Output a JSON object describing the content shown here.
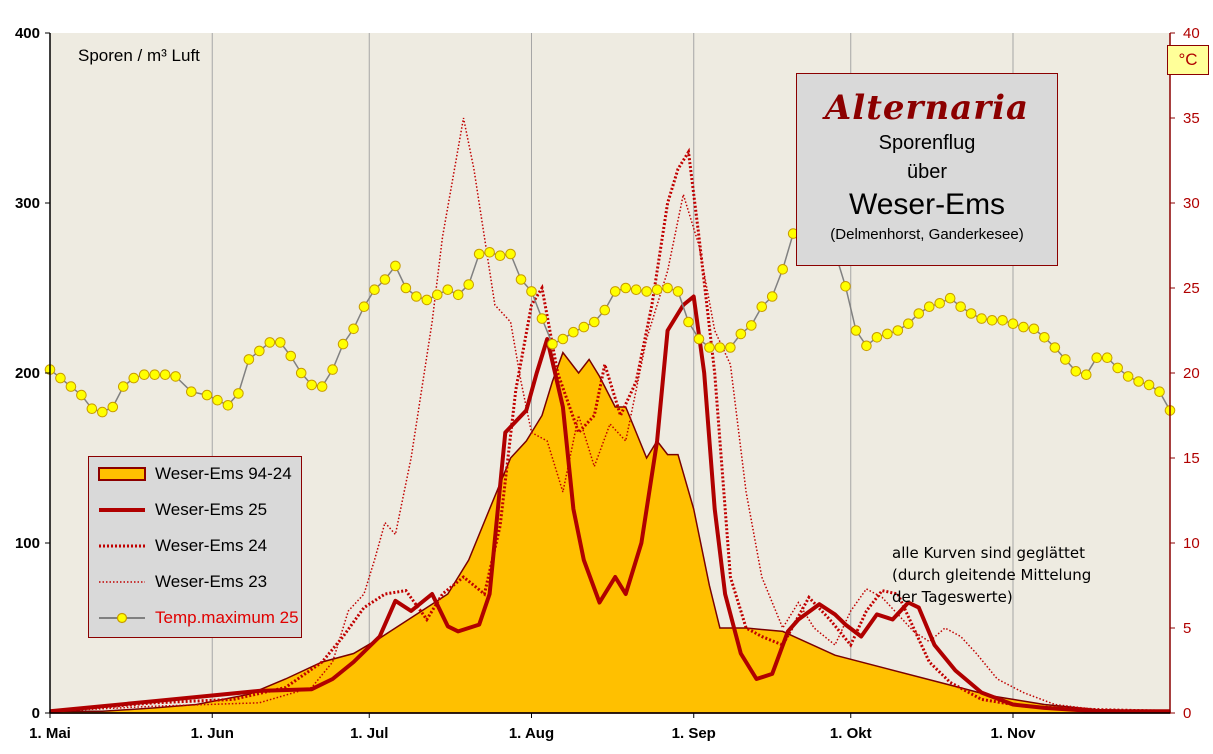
{
  "y_axis_label": "Sporen / m³ Luft",
  "y2_unit": "°C",
  "title": {
    "main": "Alternaria",
    "line2": "Sporenflug",
    "line3": "über",
    "region": "Weser-Ems",
    "places": "(Delmenhorst,  Ganderkesee)"
  },
  "note": [
    "alle Kurven   sind geglättet",
    "(durch  gleitende  Mittelung",
    "der Tageswerte)"
  ],
  "colors": {
    "plot_bg": "#eeebe1",
    "fill_9424": "#ffc000",
    "dark_red": "#b00000",
    "series_23_24": "#c00000",
    "temp_marker": "#ffff00",
    "temp_line": "#808080"
  },
  "chart_data": {
    "type": "line",
    "x_axis": {
      "unit": "day of year (1. Mai = day 0)",
      "range": [
        0,
        214
      ],
      "tick_labels": [
        "1. Mai",
        "1. Jun",
        "1. Jul",
        "1. Aug",
        "1. Sep",
        "1. Okt",
        "1. Nov"
      ],
      "tick_days": [
        0,
        31,
        61,
        92,
        123,
        153,
        184
      ]
    },
    "y_left": {
      "label": "Sporen / m³ Luft",
      "ylim": [
        0,
        400
      ],
      "ticks": [
        0,
        100,
        200,
        300,
        400
      ]
    },
    "y_right": {
      "label": "°C",
      "ylim": [
        0,
        40
      ],
      "ticks": [
        0,
        5,
        10,
        15,
        20,
        25,
        30,
        35,
        40
      ]
    },
    "grid": "vertical lines at month starts",
    "legend_position": "bottom-left",
    "series": [
      {
        "name": "Weser-Ems 94-24",
        "kind": "area",
        "axis": "left",
        "points": [
          [
            0,
            1
          ],
          [
            10,
            1
          ],
          [
            20,
            3
          ],
          [
            28,
            5
          ],
          [
            38,
            11
          ],
          [
            45,
            20
          ],
          [
            52,
            30
          ],
          [
            58,
            35
          ],
          [
            63,
            44
          ],
          [
            66,
            50
          ],
          [
            71,
            60
          ],
          [
            76,
            70
          ],
          [
            80,
            90
          ],
          [
            84,
            120
          ],
          [
            88,
            150
          ],
          [
            91,
            160
          ],
          [
            94,
            175
          ],
          [
            96,
            195
          ],
          [
            98,
            212
          ],
          [
            101,
            200
          ],
          [
            103,
            208
          ],
          [
            105,
            198
          ],
          [
            108,
            180
          ],
          [
            110,
            180
          ],
          [
            112,
            165
          ],
          [
            114,
            150
          ],
          [
            116,
            160
          ],
          [
            118,
            152
          ],
          [
            120,
            152
          ],
          [
            123,
            120
          ],
          [
            126,
            75
          ],
          [
            128,
            50
          ],
          [
            133,
            50
          ],
          [
            140,
            48
          ],
          [
            150,
            34
          ],
          [
            160,
            26
          ],
          [
            170,
            18
          ],
          [
            180,
            10
          ],
          [
            190,
            5
          ],
          [
            200,
            2
          ],
          [
            214,
            1
          ]
        ]
      },
      {
        "name": "Weser-Ems 25",
        "kind": "line-thick",
        "axis": "left",
        "points": [
          [
            0,
            1
          ],
          [
            20,
            7
          ],
          [
            30,
            10
          ],
          [
            40,
            13
          ],
          [
            50,
            14
          ],
          [
            54,
            20
          ],
          [
            58,
            30
          ],
          [
            63,
            45
          ],
          [
            66,
            66
          ],
          [
            69,
            60
          ],
          [
            73,
            70
          ],
          [
            76,
            51
          ],
          [
            78,
            48
          ],
          [
            82,
            52
          ],
          [
            84,
            70
          ],
          [
            87,
            165
          ],
          [
            91,
            178
          ],
          [
            93,
            200
          ],
          [
            95,
            220
          ],
          [
            98,
            180
          ],
          [
            100,
            120
          ],
          [
            102,
            90
          ],
          [
            105,
            65
          ],
          [
            108,
            80
          ],
          [
            110,
            70
          ],
          [
            113,
            100
          ],
          [
            116,
            160
          ],
          [
            118,
            225
          ],
          [
            121,
            240
          ],
          [
            123,
            245
          ],
          [
            125,
            200
          ],
          [
            127,
            120
          ],
          [
            129,
            70
          ],
          [
            132,
            35
          ],
          [
            135,
            20
          ],
          [
            138,
            23
          ],
          [
            141,
            48
          ],
          [
            143,
            55
          ],
          [
            147,
            64
          ],
          [
            150,
            58
          ],
          [
            152,
            52
          ],
          [
            155,
            45
          ],
          [
            158,
            58
          ],
          [
            161,
            55
          ],
          [
            164,
            65
          ],
          [
            166,
            62
          ],
          [
            169,
            40
          ],
          [
            173,
            25
          ],
          [
            178,
            12
          ],
          [
            184,
            5
          ],
          [
            190,
            3
          ],
          [
            200,
            1
          ],
          [
            214,
            1
          ]
        ]
      },
      {
        "name": "Weser-Ems 24",
        "kind": "line-dotted",
        "axis": "left",
        "points": [
          [
            0,
            1
          ],
          [
            20,
            6
          ],
          [
            35,
            8
          ],
          [
            45,
            15
          ],
          [
            52,
            30
          ],
          [
            56,
            45
          ],
          [
            60,
            62
          ],
          [
            64,
            70
          ],
          [
            68,
            72
          ],
          [
            72,
            55
          ],
          [
            75,
            70
          ],
          [
            79,
            80
          ],
          [
            83,
            70
          ],
          [
            86,
            110
          ],
          [
            89,
            190
          ],
          [
            92,
            240
          ],
          [
            94,
            250
          ],
          [
            97,
            200
          ],
          [
            101,
            165
          ],
          [
            104,
            175
          ],
          [
            106,
            205
          ],
          [
            109,
            175
          ],
          [
            112,
            195
          ],
          [
            115,
            240
          ],
          [
            118,
            300
          ],
          [
            120,
            320
          ],
          [
            122,
            330
          ],
          [
            124,
            280
          ],
          [
            127,
            200
          ],
          [
            130,
            80
          ],
          [
            133,
            50
          ],
          [
            136,
            45
          ],
          [
            140,
            40
          ],
          [
            145,
            68
          ],
          [
            149,
            55
          ],
          [
            153,
            40
          ],
          [
            156,
            60
          ],
          [
            159,
            72
          ],
          [
            162,
            70
          ],
          [
            165,
            50
          ],
          [
            168,
            30
          ],
          [
            172,
            18
          ],
          [
            178,
            8
          ],
          [
            186,
            4
          ],
          [
            200,
            2
          ],
          [
            214,
            1
          ]
        ]
      },
      {
        "name": "Weser-Ems 23",
        "kind": "line-dotted-thin",
        "axis": "left",
        "points": [
          [
            0,
            1
          ],
          [
            20,
            4
          ],
          [
            40,
            6
          ],
          [
            50,
            15
          ],
          [
            54,
            30
          ],
          [
            57,
            60
          ],
          [
            60,
            70
          ],
          [
            62,
            90
          ],
          [
            64,
            112
          ],
          [
            66,
            105
          ],
          [
            69,
            150
          ],
          [
            71,
            190
          ],
          [
            73,
            230
          ],
          [
            75,
            280
          ],
          [
            77,
            315
          ],
          [
            79,
            350
          ],
          [
            81,
            320
          ],
          [
            83,
            280
          ],
          [
            85,
            240
          ],
          [
            88,
            230
          ],
          [
            90,
            195
          ],
          [
            92,
            165
          ],
          [
            95,
            160
          ],
          [
            98,
            130
          ],
          [
            101,
            175
          ],
          [
            104,
            145
          ],
          [
            107,
            170
          ],
          [
            110,
            160
          ],
          [
            114,
            220
          ],
          [
            118,
            260
          ],
          [
            121,
            305
          ],
          [
            124,
            275
          ],
          [
            127,
            225
          ],
          [
            130,
            205
          ],
          [
            133,
            130
          ],
          [
            136,
            80
          ],
          [
            140,
            50
          ],
          [
            143,
            65
          ],
          [
            146,
            50
          ],
          [
            150,
            40
          ],
          [
            153,
            60
          ],
          [
            156,
            73
          ],
          [
            159,
            68
          ],
          [
            162,
            58
          ],
          [
            165,
            48
          ],
          [
            168,
            42
          ],
          [
            171,
            50
          ],
          [
            174,
            45
          ],
          [
            177,
            35
          ],
          [
            181,
            20
          ],
          [
            186,
            12
          ],
          [
            192,
            5
          ],
          [
            200,
            2
          ],
          [
            214,
            1
          ]
        ]
      },
      {
        "name": "Temp.maximum 25",
        "kind": "line-markers",
        "axis": "right",
        "points": [
          [
            0,
            20.2
          ],
          [
            2,
            19.7
          ],
          [
            4,
            19.2
          ],
          [
            6,
            18.7
          ],
          [
            8,
            17.9
          ],
          [
            10,
            17.7
          ],
          [
            12,
            18.0
          ],
          [
            14,
            19.2
          ],
          [
            16,
            19.7
          ],
          [
            18,
            19.9
          ],
          [
            20,
            19.9
          ],
          [
            22,
            19.9
          ],
          [
            24,
            19.8
          ],
          [
            27,
            18.9
          ],
          [
            30,
            18.7
          ],
          [
            32,
            18.4
          ],
          [
            34,
            18.1
          ],
          [
            36,
            18.8
          ],
          [
            38,
            20.8
          ],
          [
            40,
            21.3
          ],
          [
            42,
            21.8
          ],
          [
            44,
            21.8
          ],
          [
            46,
            21.0
          ],
          [
            48,
            20.0
          ],
          [
            50,
            19.3
          ],
          [
            52,
            19.2
          ],
          [
            54,
            20.2
          ],
          [
            56,
            21.7
          ],
          [
            58,
            22.6
          ],
          [
            60,
            23.9
          ],
          [
            62,
            24.9
          ],
          [
            64,
            25.5
          ],
          [
            66,
            26.3
          ],
          [
            68,
            25.0
          ],
          [
            70,
            24.5
          ],
          [
            72,
            24.3
          ],
          [
            74,
            24.6
          ],
          [
            76,
            24.9
          ],
          [
            78,
            24.6
          ],
          [
            80,
            25.2
          ],
          [
            82,
            27.0
          ],
          [
            84,
            27.1
          ],
          [
            86,
            26.9
          ],
          [
            88,
            27.0
          ],
          [
            90,
            25.5
          ],
          [
            92,
            24.8
          ],
          [
            94,
            23.2
          ],
          [
            96,
            21.7
          ],
          [
            98,
            22.0
          ],
          [
            100,
            22.4
          ],
          [
            102,
            22.7
          ],
          [
            104,
            23.0
          ],
          [
            106,
            23.7
          ],
          [
            108,
            24.8
          ],
          [
            110,
            25.0
          ],
          [
            112,
            24.9
          ],
          [
            114,
            24.8
          ],
          [
            116,
            24.9
          ],
          [
            118,
            25.0
          ],
          [
            120,
            24.8
          ],
          [
            122,
            23.0
          ],
          [
            124,
            22.0
          ],
          [
            126,
            21.5
          ],
          [
            128,
            21.5
          ],
          [
            130,
            21.5
          ],
          [
            132,
            22.3
          ],
          [
            134,
            22.8
          ],
          [
            136,
            23.9
          ],
          [
            138,
            24.5
          ],
          [
            140,
            26.1
          ],
          [
            142,
            28.2
          ],
          [
            144,
            28.5
          ],
          [
            146,
            28.2
          ],
          [
            148,
            27.8
          ],
          [
            150,
            27.1
          ],
          [
            152,
            25.1
          ],
          [
            154,
            22.5
          ],
          [
            156,
            21.6
          ],
          [
            158,
            22.1
          ],
          [
            160,
            22.3
          ],
          [
            162,
            22.5
          ],
          [
            164,
            22.9
          ],
          [
            166,
            23.5
          ],
          [
            168,
            23.9
          ],
          [
            170,
            24.1
          ],
          [
            172,
            24.4
          ],
          [
            174,
            23.9
          ],
          [
            176,
            23.5
          ],
          [
            178,
            23.2
          ],
          [
            180,
            23.1
          ],
          [
            182,
            23.1
          ],
          [
            184,
            22.9
          ],
          [
            186,
            22.7
          ],
          [
            188,
            22.6
          ],
          [
            190,
            22.1
          ],
          [
            192,
            21.5
          ],
          [
            194,
            20.8
          ],
          [
            196,
            20.1
          ],
          [
            198,
            19.9
          ],
          [
            200,
            20.9
          ],
          [
            202,
            20.9
          ],
          [
            204,
            20.3
          ],
          [
            206,
            19.8
          ],
          [
            208,
            19.5
          ],
          [
            210,
            19.3
          ],
          [
            212,
            18.9
          ],
          [
            214,
            17.8
          ]
        ]
      }
    ]
  },
  "legend": {
    "items": [
      {
        "label": "Weser-Ems 94-24"
      },
      {
        "label": "Weser-Ems 25"
      },
      {
        "label": "Weser-Ems 24"
      },
      {
        "label": "Weser-Ems 23"
      },
      {
        "label": "Temp.maximum 25"
      }
    ]
  }
}
